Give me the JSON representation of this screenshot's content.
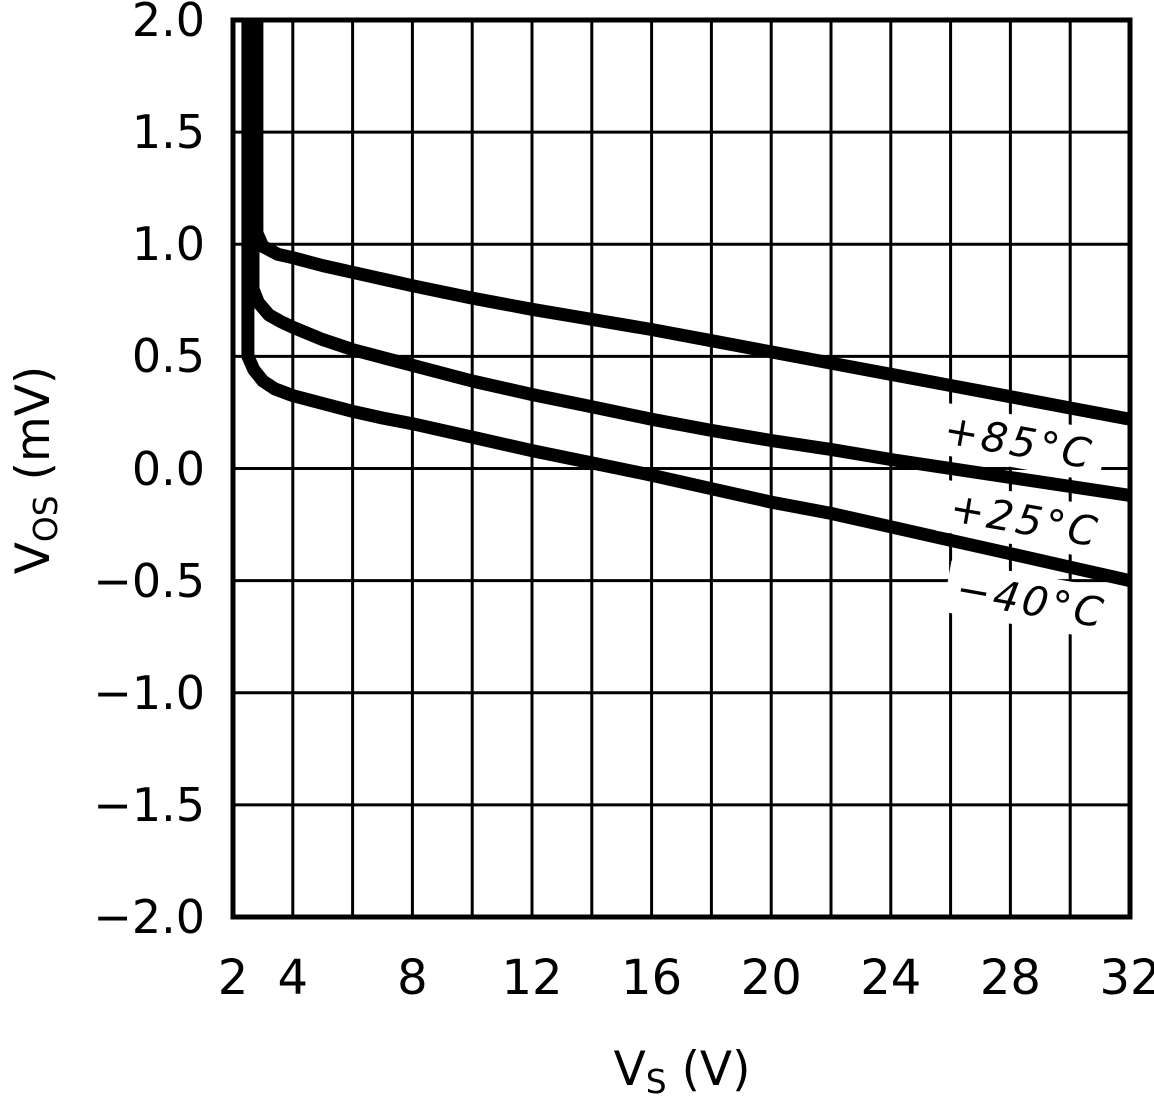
{
  "page": {
    "background": "#ffffff",
    "ink": "#000000"
  },
  "chart_data": {
    "type": "line",
    "title": "",
    "grid": true,
    "line_color": "#000000",
    "label_angle_deg": 10,
    "x_axis": {
      "label": {
        "main": "V",
        "sub": "S",
        "unit": " (V)"
      },
      "min": 2,
      "max": 32,
      "grid_step": 2,
      "tick_values": [
        2,
        4,
        8,
        12,
        16,
        20,
        24,
        28,
        32
      ],
      "tick_labels": [
        "2",
        "4",
        "8",
        "12",
        "16",
        "20",
        "24",
        "28",
        "32"
      ]
    },
    "y_axis": {
      "label": {
        "main": "V",
        "sub": "OS",
        "unit": " (mV)"
      },
      "min": -2.0,
      "max": 2.0,
      "grid_step": 0.5,
      "tick_values": [
        2.0,
        1.5,
        1.0,
        0.5,
        0.0,
        -0.5,
        -1.0,
        -1.5,
        -2.0
      ],
      "tick_labels": [
        "2.0",
        "1.5",
        "1.0",
        "0.5",
        "0.0",
        "−0.5",
        "−1.0",
        "−1.5",
        "−2.0"
      ]
    },
    "series": [
      {
        "name": "+85°C",
        "label_pos": {
          "x": 28.3,
          "y": 0.12
        },
        "points": [
          [
            2.8,
            2.1
          ],
          [
            2.8,
            1.05
          ],
          [
            3.0,
            0.99
          ],
          [
            3.5,
            0.955
          ],
          [
            4,
            0.94
          ],
          [
            5,
            0.905
          ],
          [
            6,
            0.875
          ],
          [
            7,
            0.845
          ],
          [
            8,
            0.815
          ],
          [
            10,
            0.76
          ],
          [
            12,
            0.71
          ],
          [
            14,
            0.665
          ],
          [
            16,
            0.62
          ],
          [
            18,
            0.57
          ],
          [
            20,
            0.52
          ],
          [
            22,
            0.47
          ],
          [
            24,
            0.42
          ],
          [
            26,
            0.37
          ],
          [
            28,
            0.32
          ],
          [
            30,
            0.27
          ],
          [
            32,
            0.22
          ]
        ]
      },
      {
        "name": "+25°C",
        "label_pos": {
          "x": 28.5,
          "y": -0.23
        },
        "points": [
          [
            2.67,
            2.1
          ],
          [
            2.67,
            0.8
          ],
          [
            2.85,
            0.74
          ],
          [
            3.2,
            0.685
          ],
          [
            3.6,
            0.655
          ],
          [
            4,
            0.63
          ],
          [
            5,
            0.575
          ],
          [
            6,
            0.53
          ],
          [
            7,
            0.495
          ],
          [
            8,
            0.46
          ],
          [
            10,
            0.39
          ],
          [
            12,
            0.33
          ],
          [
            14,
            0.275
          ],
          [
            16,
            0.22
          ],
          [
            18,
            0.17
          ],
          [
            20,
            0.125
          ],
          [
            22,
            0.085
          ],
          [
            24,
            0.04
          ],
          [
            26,
            0.0
          ],
          [
            28,
            -0.04
          ],
          [
            30,
            -0.08
          ],
          [
            32,
            -0.12
          ]
        ]
      },
      {
        "name": "−40°C",
        "label_pos": {
          "x": 28.7,
          "y": -0.59
        },
        "points": [
          [
            2.5,
            2.1
          ],
          [
            2.5,
            0.5
          ],
          [
            2.7,
            0.44
          ],
          [
            3.0,
            0.39
          ],
          [
            3.4,
            0.355
          ],
          [
            4,
            0.325
          ],
          [
            5,
            0.29
          ],
          [
            6,
            0.255
          ],
          [
            7,
            0.225
          ],
          [
            8,
            0.2
          ],
          [
            10,
            0.14
          ],
          [
            12,
            0.08
          ],
          [
            14,
            0.025
          ],
          [
            16,
            -0.03
          ],
          [
            18,
            -0.09
          ],
          [
            20,
            -0.15
          ],
          [
            22,
            -0.2
          ],
          [
            24,
            -0.26
          ],
          [
            26,
            -0.32
          ],
          [
            28,
            -0.38
          ],
          [
            30,
            -0.44
          ],
          [
            32,
            -0.5
          ]
        ]
      }
    ]
  }
}
